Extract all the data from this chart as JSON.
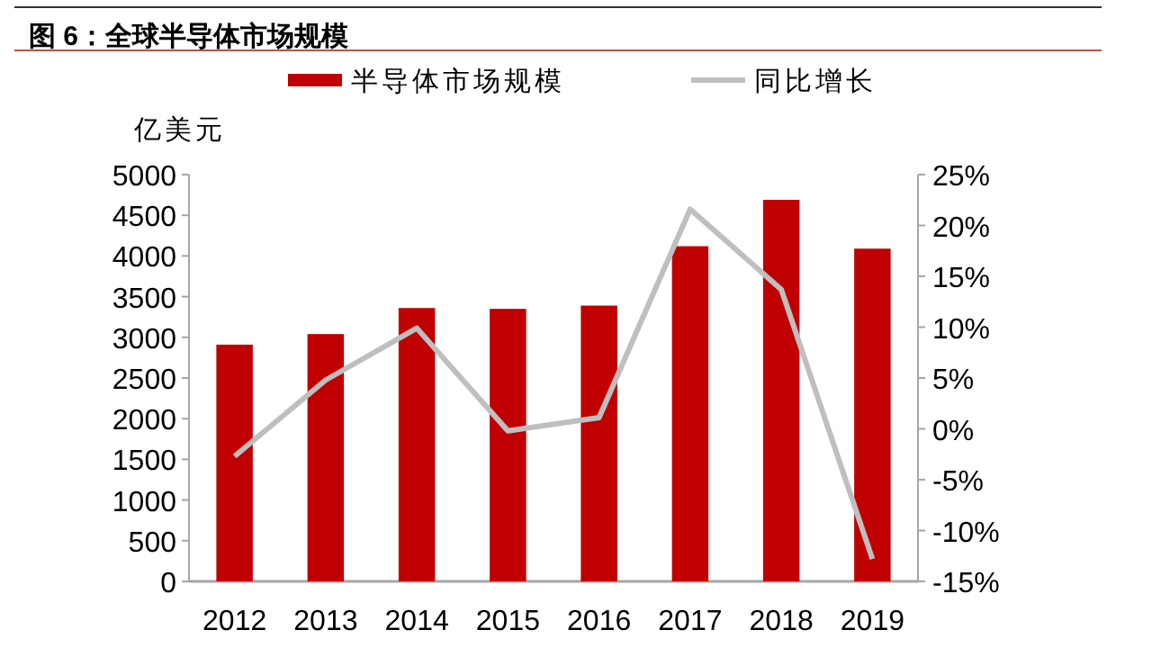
{
  "chart_data": {
    "type": "bar",
    "title": "图 6：全球半导体市场规模",
    "ylabel": "亿美元",
    "categories": [
      "2012",
      "2013",
      "2014",
      "2015",
      "2016",
      "2017",
      "2018",
      "2019"
    ],
    "series": [
      {
        "name": "半导体市场规模",
        "color": "#c00000",
        "values": [
          2910,
          3040,
          3360,
          3350,
          3390,
          4120,
          4690,
          4090
        ]
      },
      {
        "name": "同比增长",
        "type": "line",
        "axis": "y2",
        "color": "#bfbfbf",
        "values": [
          -2.7,
          4.8,
          9.9,
          -0.2,
          1.1,
          21.6,
          13.7,
          -12.8
        ]
      }
    ],
    "ylim": [
      0,
      5000
    ],
    "yticks": [
      0,
      500,
      1000,
      1500,
      2000,
      2500,
      3000,
      3500,
      4000,
      4500,
      5000
    ],
    "y2lim": [
      -15,
      25
    ],
    "y2ticks": [
      {
        "value": -15,
        "label": "-15%"
      },
      {
        "value": -10,
        "label": "-10%"
      },
      {
        "value": -5,
        "label": "-5%"
      },
      {
        "value": 0,
        "label": "0%"
      },
      {
        "value": 5,
        "label": "5%"
      },
      {
        "value": 10,
        "label": "10%"
      },
      {
        "value": 15,
        "label": "15%"
      },
      {
        "value": 20,
        "label": "20%"
      },
      {
        "value": 25,
        "label": "25%"
      }
    ],
    "grid": false,
    "legend": "top",
    "marker": "none",
    "line_style": "solid"
  }
}
